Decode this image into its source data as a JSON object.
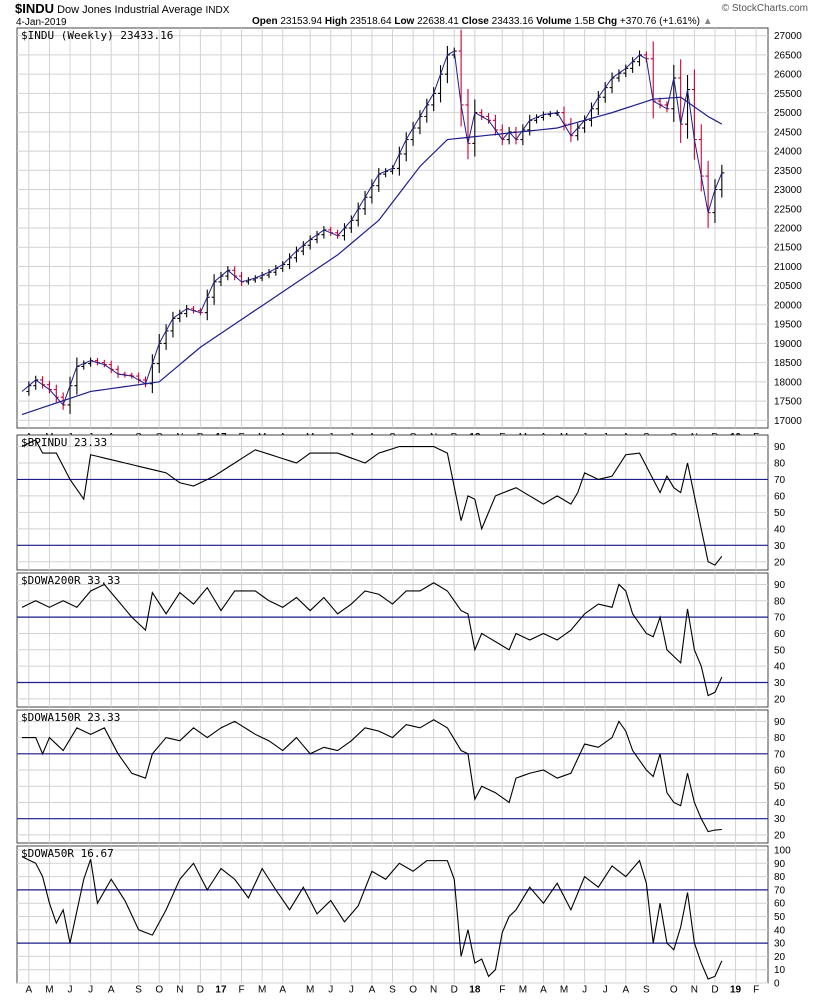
{
  "header": {
    "symbol": "$INDU",
    "name": "Dow Jones Industrial Average",
    "exchange": "INDX",
    "date": "4-Jan-2019",
    "brand": "© StockCharts.com",
    "open_label": "Open",
    "open": "23153.94",
    "high_label": "High",
    "high": "23518.64",
    "low_label": "Low",
    "low": "22638.41",
    "close_label": "Close",
    "close": "23433.16",
    "volume_label": "Volume",
    "volume": "1.5B",
    "chg_label": "Chg",
    "chg": "+370.76 (+1.61%)"
  },
  "colors": {
    "price_up": "#000000",
    "price_down": "#cc0033",
    "ma": "#1e1e8c",
    "grid": "#d2d2d2",
    "hline": "#1e1e8c",
    "line": "#000000"
  },
  "chart_data": [
    {
      "type": "line",
      "title": "$INDU (Weekly) 23433.16",
      "ylim": [
        16800,
        27200
      ],
      "yticks": [
        17000,
        17500,
        18000,
        18500,
        19000,
        19500,
        20000,
        20500,
        21000,
        21500,
        22000,
        22500,
        23000,
        23500,
        24000,
        24500,
        25000,
        25500,
        26000,
        26500,
        27000
      ],
      "x_labels": [
        "A",
        "M",
        "J",
        "J",
        "A",
        "S",
        "O",
        "N",
        "D",
        "17",
        "F",
        "M",
        "A",
        "M",
        "J",
        "J",
        "A",
        "S",
        "O",
        "N",
        "D",
        "18",
        "F",
        "M",
        "A",
        "M",
        "J",
        "J",
        "A",
        "S",
        "O",
        "N",
        "D",
        "19",
        "F"
      ],
      "close_anchors": [
        [
          0,
          17750
        ],
        [
          2,
          18050
        ],
        [
          4,
          17800
        ],
        [
          6,
          17400
        ],
        [
          8,
          18400
        ],
        [
          10,
          18550
        ],
        [
          12,
          18450
        ],
        [
          14,
          18200
        ],
        [
          16,
          18150
        ],
        [
          18,
          17950
        ],
        [
          20,
          19000
        ],
        [
          22,
          19650
        ],
        [
          24,
          19900
        ],
        [
          26,
          19800
        ],
        [
          28,
          20600
        ],
        [
          30,
          20900
        ],
        [
          32,
          20600
        ],
        [
          34,
          20700
        ],
        [
          36,
          20850
        ],
        [
          38,
          21050
        ],
        [
          40,
          21400
        ],
        [
          42,
          21700
        ],
        [
          44,
          21950
        ],
        [
          46,
          21800
        ],
        [
          48,
          22200
        ],
        [
          50,
          22800
        ],
        [
          52,
          23400
        ],
        [
          54,
          23550
        ],
        [
          56,
          24300
        ],
        [
          58,
          24900
        ],
        [
          60,
          25500
        ],
        [
          62,
          26500
        ],
        [
          63,
          26600
        ],
        [
          64,
          25200
        ],
        [
          65,
          24200
        ],
        [
          66,
          25000
        ],
        [
          68,
          24800
        ],
        [
          70,
          24300
        ],
        [
          71,
          24500
        ],
        [
          72,
          24300
        ],
        [
          74,
          24800
        ],
        [
          76,
          24950
        ],
        [
          78,
          25000
        ],
        [
          80,
          24400
        ],
        [
          82,
          24800
        ],
        [
          84,
          25400
        ],
        [
          86,
          25900
        ],
        [
          88,
          26150
        ],
        [
          90,
          26500
        ],
        [
          91,
          26400
        ],
        [
          92,
          25300
        ],
        [
          94,
          25100
        ],
        [
          95,
          25900
        ],
        [
          96,
          24700
        ],
        [
          97,
          25600
        ],
        [
          98,
          24300
        ],
        [
          100,
          22400
        ],
        [
          101,
          23000
        ],
        [
          102,
          23433
        ]
      ],
      "ma_anchors": [
        [
          0,
          17150
        ],
        [
          10,
          17750
        ],
        [
          20,
          18000
        ],
        [
          26,
          18900
        ],
        [
          36,
          20100
        ],
        [
          46,
          21300
        ],
        [
          52,
          22200
        ],
        [
          58,
          23600
        ],
        [
          62,
          24300
        ],
        [
          70,
          24450
        ],
        [
          78,
          24600
        ],
        [
          86,
          25000
        ],
        [
          92,
          25350
        ],
        [
          96,
          25400
        ],
        [
          100,
          24900
        ],
        [
          102,
          24700
        ]
      ]
    },
    {
      "type": "line",
      "title": "$BPINDU 23.33",
      "ylim": [
        15,
        97
      ],
      "yticks": [
        20,
        30,
        40,
        50,
        60,
        70,
        80,
        90
      ],
      "hlines": [
        70,
        30
      ],
      "anchors": [
        [
          0,
          90
        ],
        [
          2,
          94
        ],
        [
          3,
          86
        ],
        [
          5,
          86
        ],
        [
          7,
          70
        ],
        [
          9,
          58
        ],
        [
          10,
          85
        ],
        [
          13,
          82
        ],
        [
          19,
          76
        ],
        [
          21,
          74
        ],
        [
          23,
          68
        ],
        [
          25,
          66
        ],
        [
          28,
          72
        ],
        [
          31,
          80
        ],
        [
          34,
          88
        ],
        [
          40,
          80
        ],
        [
          42,
          86
        ],
        [
          46,
          86
        ],
        [
          50,
          80
        ],
        [
          52,
          86
        ],
        [
          55,
          90
        ],
        [
          60,
          90
        ],
        [
          62,
          86
        ],
        [
          64,
          45
        ],
        [
          65,
          60
        ],
        [
          66,
          58
        ],
        [
          67,
          40
        ],
        [
          69,
          60
        ],
        [
          72,
          65
        ],
        [
          74,
          60
        ],
        [
          76,
          55
        ],
        [
          78,
          60
        ],
        [
          80,
          55
        ],
        [
          81,
          62
        ],
        [
          82,
          74
        ],
        [
          84,
          70
        ],
        [
          86,
          72
        ],
        [
          88,
          85
        ],
        [
          90,
          86
        ],
        [
          91,
          78
        ],
        [
          92,
          70
        ],
        [
          93,
          62
        ],
        [
          94,
          72
        ],
        [
          95,
          65
        ],
        [
          96,
          62
        ],
        [
          97,
          80
        ],
        [
          98,
          60
        ],
        [
          99,
          40
        ],
        [
          100,
          20
        ],
        [
          101,
          18
        ],
        [
          102,
          23.33
        ]
      ]
    },
    {
      "type": "line",
      "title": "$DOWA200R 33.33",
      "ylim": [
        15,
        97
      ],
      "yticks": [
        20,
        30,
        40,
        50,
        60,
        70,
        80,
        90
      ],
      "hlines": [
        70,
        30
      ],
      "anchors": [
        [
          0,
          76
        ],
        [
          2,
          80
        ],
        [
          4,
          76
        ],
        [
          6,
          80
        ],
        [
          8,
          76
        ],
        [
          10,
          86
        ],
        [
          12,
          90
        ],
        [
          14,
          80
        ],
        [
          16,
          70
        ],
        [
          18,
          62
        ],
        [
          19,
          85
        ],
        [
          21,
          72
        ],
        [
          23,
          85
        ],
        [
          25,
          78
        ],
        [
          27,
          88
        ],
        [
          29,
          74
        ],
        [
          31,
          86
        ],
        [
          34,
          86
        ],
        [
          36,
          80
        ],
        [
          38,
          76
        ],
        [
          40,
          82
        ],
        [
          42,
          74
        ],
        [
          44,
          82
        ],
        [
          46,
          72
        ],
        [
          48,
          78
        ],
        [
          50,
          86
        ],
        [
          52,
          84
        ],
        [
          54,
          78
        ],
        [
          56,
          86
        ],
        [
          58,
          86
        ],
        [
          60,
          91
        ],
        [
          62,
          86
        ],
        [
          64,
          74
        ],
        [
          65,
          72
        ],
        [
          66,
          50
        ],
        [
          67,
          60
        ],
        [
          69,
          55
        ],
        [
          71,
          50
        ],
        [
          72,
          60
        ],
        [
          74,
          56
        ],
        [
          76,
          60
        ],
        [
          78,
          56
        ],
        [
          80,
          62
        ],
        [
          82,
          72
        ],
        [
          84,
          78
        ],
        [
          86,
          76
        ],
        [
          87,
          90
        ],
        [
          88,
          86
        ],
        [
          89,
          72
        ],
        [
          90,
          66
        ],
        [
          91,
          60
        ],
        [
          92,
          58
        ],
        [
          93,
          70
        ],
        [
          94,
          50
        ],
        [
          95,
          46
        ],
        [
          96,
          42
        ],
        [
          97,
          75
        ],
        [
          98,
          50
        ],
        [
          99,
          40
        ],
        [
          100,
          22
        ],
        [
          101,
          24
        ],
        [
          102,
          33.33
        ]
      ]
    },
    {
      "type": "line",
      "title": "$DOWA150R 23.33",
      "ylim": [
        15,
        97
      ],
      "yticks": [
        20,
        30,
        40,
        50,
        60,
        70,
        80,
        90
      ],
      "hlines": [
        70,
        30
      ],
      "anchors": [
        [
          0,
          80
        ],
        [
          2,
          80
        ],
        [
          3,
          70
        ],
        [
          4,
          80
        ],
        [
          6,
          72
        ],
        [
          8,
          86
        ],
        [
          10,
          82
        ],
        [
          12,
          86
        ],
        [
          14,
          70
        ],
        [
          16,
          58
        ],
        [
          18,
          55
        ],
        [
          19,
          70
        ],
        [
          21,
          80
        ],
        [
          23,
          78
        ],
        [
          25,
          86
        ],
        [
          27,
          80
        ],
        [
          29,
          86
        ],
        [
          31,
          90
        ],
        [
          34,
          82
        ],
        [
          36,
          78
        ],
        [
          38,
          72
        ],
        [
          40,
          80
        ],
        [
          42,
          70
        ],
        [
          44,
          74
        ],
        [
          46,
          72
        ],
        [
          48,
          78
        ],
        [
          50,
          86
        ],
        [
          52,
          84
        ],
        [
          54,
          80
        ],
        [
          56,
          88
        ],
        [
          58,
          86
        ],
        [
          60,
          91
        ],
        [
          62,
          86
        ],
        [
          64,
          72
        ],
        [
          65,
          70
        ],
        [
          66,
          42
        ],
        [
          67,
          50
        ],
        [
          69,
          46
        ],
        [
          71,
          40
        ],
        [
          72,
          55
        ],
        [
          74,
          58
        ],
        [
          76,
          60
        ],
        [
          78,
          55
        ],
        [
          80,
          58
        ],
        [
          82,
          76
        ],
        [
          84,
          74
        ],
        [
          86,
          80
        ],
        [
          87,
          90
        ],
        [
          88,
          84
        ],
        [
          89,
          72
        ],
        [
          90,
          66
        ],
        [
          91,
          60
        ],
        [
          92,
          56
        ],
        [
          93,
          70
        ],
        [
          94,
          46
        ],
        [
          95,
          40
        ],
        [
          96,
          38
        ],
        [
          97,
          58
        ],
        [
          98,
          40
        ],
        [
          99,
          30
        ],
        [
          100,
          22
        ],
        [
          101,
          23
        ],
        [
          102,
          23.33
        ]
      ]
    },
    {
      "type": "line",
      "title": "$DOWA50R 16.67",
      "ylim": [
        0,
        103
      ],
      "yticks": [
        0,
        10,
        20,
        30,
        40,
        50,
        60,
        70,
        80,
        90,
        100
      ],
      "hlines": [
        70,
        30
      ],
      "anchors": [
        [
          0,
          95
        ],
        [
          2,
          90
        ],
        [
          3,
          80
        ],
        [
          4,
          60
        ],
        [
          5,
          45
        ],
        [
          6,
          55
        ],
        [
          7,
          30
        ],
        [
          9,
          78
        ],
        [
          10,
          93
        ],
        [
          11,
          60
        ],
        [
          13,
          78
        ],
        [
          15,
          62
        ],
        [
          17,
          40
        ],
        [
          19,
          36
        ],
        [
          21,
          55
        ],
        [
          23,
          78
        ],
        [
          25,
          90
        ],
        [
          27,
          70
        ],
        [
          29,
          86
        ],
        [
          31,
          78
        ],
        [
          33,
          64
        ],
        [
          35,
          86
        ],
        [
          37,
          70
        ],
        [
          39,
          55
        ],
        [
          41,
          72
        ],
        [
          43,
          52
        ],
        [
          45,
          62
        ],
        [
          47,
          46
        ],
        [
          49,
          58
        ],
        [
          51,
          84
        ],
        [
          53,
          78
        ],
        [
          55,
          90
        ],
        [
          57,
          84
        ],
        [
          59,
          92
        ],
        [
          62,
          92
        ],
        [
          63,
          78
        ],
        [
          64,
          20
        ],
        [
          65,
          40
        ],
        [
          66,
          15
        ],
        [
          67,
          18
        ],
        [
          68,
          5
        ],
        [
          69,
          10
        ],
        [
          70,
          38
        ],
        [
          71,
          50
        ],
        [
          72,
          55
        ],
        [
          74,
          72
        ],
        [
          76,
          60
        ],
        [
          78,
          75
        ],
        [
          80,
          55
        ],
        [
          82,
          80
        ],
        [
          84,
          72
        ],
        [
          86,
          88
        ],
        [
          88,
          80
        ],
        [
          90,
          92
        ],
        [
          91,
          75
        ],
        [
          92,
          30
        ],
        [
          93,
          60
        ],
        [
          94,
          30
        ],
        [
          95,
          25
        ],
        [
          96,
          42
        ],
        [
          97,
          68
        ],
        [
          98,
          30
        ],
        [
          99,
          15
        ],
        [
          100,
          3
        ],
        [
          101,
          5
        ],
        [
          102,
          16.67
        ]
      ]
    }
  ]
}
